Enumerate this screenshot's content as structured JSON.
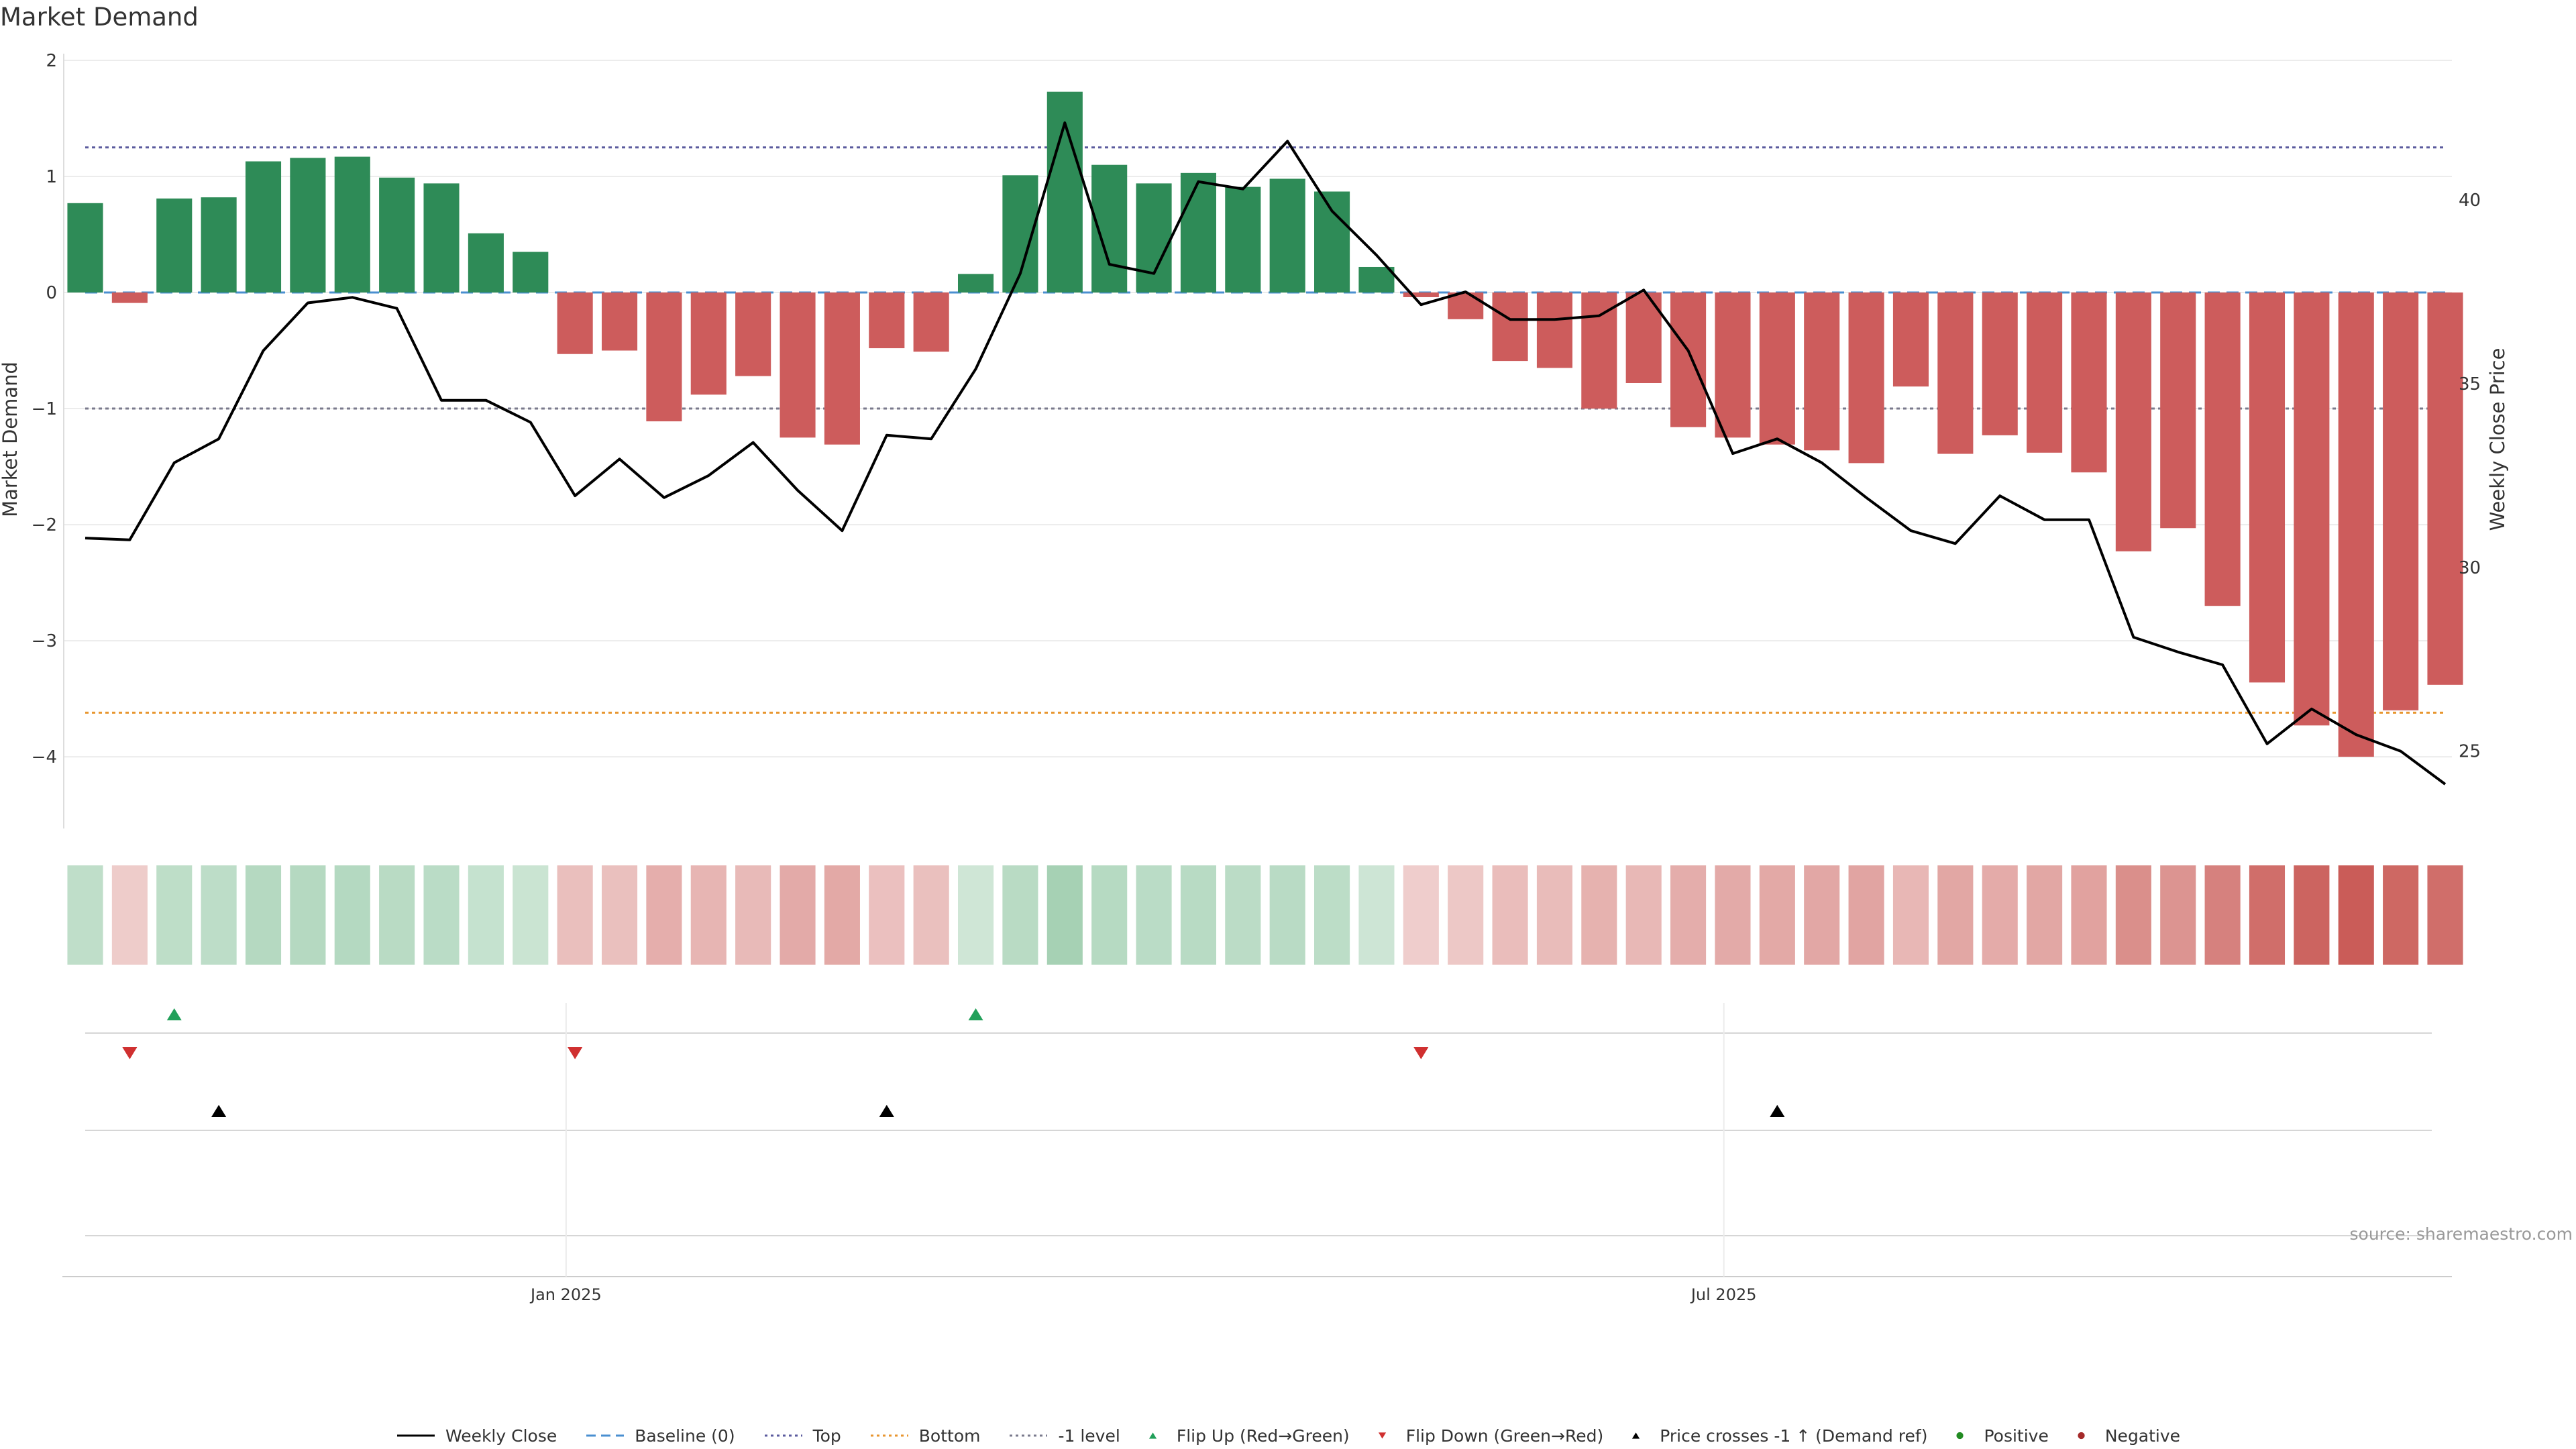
{
  "chart_data": {
    "type": "bar",
    "title": "Market Demand",
    "ylabel": "Market Demand",
    "ylabel_right": "Weekly Close Price",
    "ylim": [
      -4.3,
      2.0
    ],
    "yticks": [
      2,
      1,
      0,
      -1,
      -2,
      -3,
      -4
    ],
    "ytick_labels": [
      "2",
      "1",
      "0",
      "−1",
      "−2",
      "−3",
      "−4"
    ],
    "ylim_right": [
      23.9,
      43.8
    ],
    "yticks_right": [
      40,
      35,
      30,
      25
    ],
    "x_date_labels": [
      {
        "label": "Jan 2025",
        "week_index": 10.8
      },
      {
        "label": "Jul 2025",
        "week_index": 36.8
      }
    ],
    "reference_lines": {
      "top": 1.25,
      "bottom": -3.62,
      "minus_one": -1.0,
      "baseline": 0
    },
    "demand": [
      0.77,
      -0.09,
      0.81,
      0.82,
      1.13,
      1.16,
      1.17,
      0.99,
      0.94,
      0.51,
      0.35,
      -0.53,
      -0.5,
      -1.11,
      -0.88,
      -0.72,
      -1.25,
      -1.31,
      -0.48,
      -0.51,
      0.16,
      1.01,
      1.73,
      1.1,
      0.94,
      1.03,
      0.91,
      0.98,
      0.87,
      0.22,
      -0.04,
      -0.23,
      -0.59,
      -0.65,
      -1.0,
      -0.78,
      -1.16,
      -1.25,
      -1.31,
      -1.36,
      -1.47,
      -0.81,
      -1.39,
      -1.23,
      -1.38,
      -1.55,
      -2.23,
      -2.03,
      -2.7,
      -3.36,
      -3.73,
      -4.0,
      -3.6,
      -3.38
    ],
    "weekly_close": [
      30.8,
      30.75,
      32.85,
      33.5,
      35.9,
      37.2,
      37.35,
      37.05,
      34.55,
      34.55,
      33.95,
      31.95,
      32.95,
      31.9,
      32.5,
      33.4,
      32.1,
      31.0,
      33.6,
      33.5,
      35.4,
      38.0,
      42.1,
      38.25,
      38.0,
      40.5,
      40.3,
      41.6,
      39.7,
      38.5,
      37.15,
      37.5,
      36.75,
      36.75,
      36.85,
      37.55,
      35.9,
      33.1,
      33.5,
      32.85,
      31.9,
      31.0,
      30.65,
      31.95,
      31.3,
      31.3,
      28.1,
      27.7,
      27.35,
      25.2,
      26.15,
      25.45,
      25.0,
      24.1
    ],
    "flip_up_weeks": [
      2,
      20
    ],
    "flip_down_weeks": [
      1,
      11,
      30
    ],
    "price_cross_weeks": [
      3,
      18,
      38
    ],
    "source": "source: sharemaestro.com",
    "legend": [
      "Weekly Close",
      "Baseline (0)",
      "Top",
      "Bottom",
      "-1 level",
      "Flip Up (Red→Green)",
      "Flip Down (Green→Red)",
      "Price crosses -1 ↑ (Demand ref)",
      "Positive",
      "Negative"
    ]
  },
  "colors": {
    "positive": "#2e8b57",
    "negative": "#cd5c5c",
    "price": "#000000",
    "top": "#5b5b9e",
    "bottom": "#e8962f",
    "minus_one": "#7a7a8c",
    "baseline": "#4a8fd0",
    "flip_up": "#22a05a",
    "flip_down": "#d03030",
    "cross": "#000000",
    "positive_dot": "#228b22",
    "negative_dot": "#a52a2a"
  }
}
